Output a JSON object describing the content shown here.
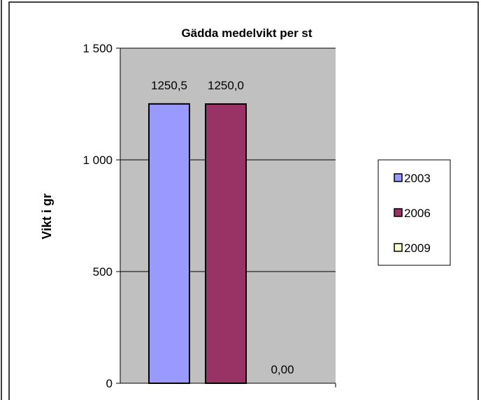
{
  "chart_data": {
    "type": "bar",
    "title": "Gädda medelvikt per st",
    "xlabel": "",
    "ylabel": "Vikt i gr",
    "ylim": [
      0,
      1500
    ],
    "yticks": [
      0,
      500,
      1000,
      1500
    ],
    "ytick_labels": [
      "0",
      "500",
      "1 000",
      "1 500"
    ],
    "grid": true,
    "legend_position": "right",
    "series": [
      {
        "name": "2003",
        "value": 1250.5,
        "label": "1250,5",
        "color": "#9999ff"
      },
      {
        "name": "2006",
        "value": 1250.0,
        "label": "1250,0",
        "color": "#993366"
      },
      {
        "name": "2009",
        "value": 0.0,
        "label": "0,00",
        "color": "#ffffcc"
      }
    ],
    "plot_background": "#c0c0c0"
  }
}
